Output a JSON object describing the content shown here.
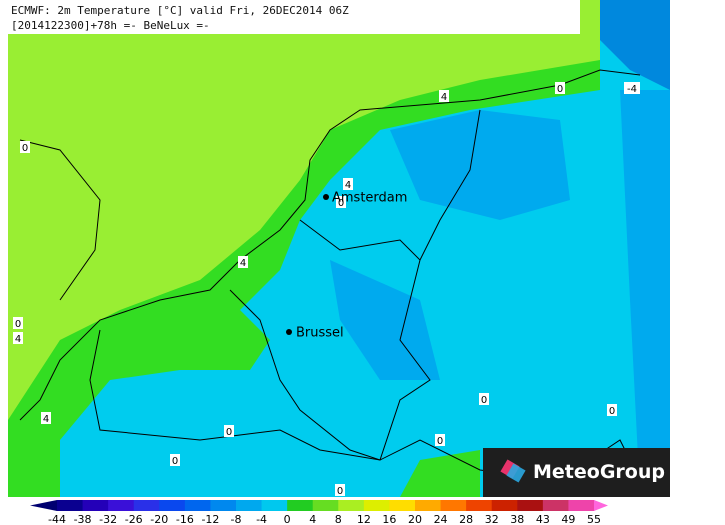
{
  "header": {
    "line1": "ECMWF: 2m Temperature [°C] valid Fri, 26DEC2014 06Z",
    "line2": "[2014122300]+78h  =- BeNeLux =-"
  },
  "places": [
    {
      "name": "Amsterdam"
    },
    {
      "name": "Brussel"
    }
  ],
  "contour_labels": [
    0,
    4,
    0,
    -4,
    4,
    0,
    4,
    0,
    4,
    4,
    0,
    0,
    0,
    0,
    0,
    0
  ],
  "colorbar": {
    "ticks": [
      -44,
      -38,
      -32,
      -26,
      -20,
      -16,
      -12,
      -8,
      -4,
      0,
      4,
      8,
      12,
      16,
      20,
      24,
      28,
      32,
      38,
      43,
      49,
      55
    ],
    "colors": [
      "#0a0090",
      "#2400b8",
      "#3a10d8",
      "#2a30e8",
      "#0a48ee",
      "#0066ee",
      "#0088ee",
      "#00a8ee",
      "#00c8ee",
      "#22cc22",
      "#66dd22",
      "#aaee22",
      "#ddee00",
      "#ffdd00",
      "#ffaa00",
      "#ff7700",
      "#ee4400",
      "#cc2200",
      "#aa1111",
      "#cc3366",
      "#ee44aa"
    ],
    "under_color": "#000070",
    "over_color": "#ff66dd"
  },
  "logo": {
    "text": "MeteoGroup"
  }
}
